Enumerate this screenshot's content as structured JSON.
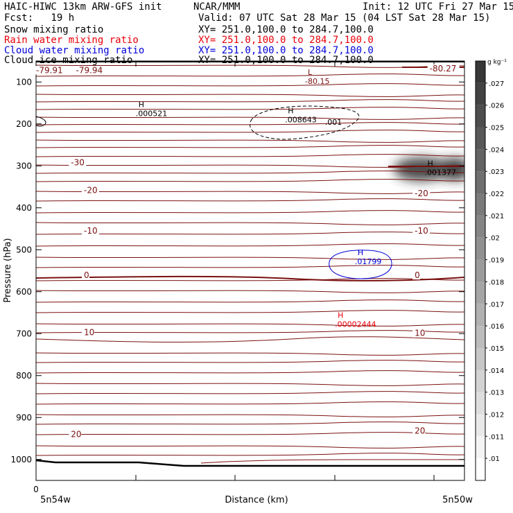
{
  "header": {
    "model": "HAIC-HIWC 13km ARW-GFS init",
    "org": "NCAR/MMM",
    "init": "Init: 12 UTC Fri 27 Mar 15",
    "fcst": "Fcst:   19 h",
    "valid": "Valid: 07 UTC Sat 28 Mar 15 (04 LST Sat 28 Mar 15)"
  },
  "fields": [
    {
      "name": "Snow mixing ratio",
      "xy": "XY= 251.0,100.0 to 284.7,100.0",
      "color": "#000000"
    },
    {
      "name": "Rain water mixing ratio",
      "xy": "XY= 251.0,100.0 to 284.7,100.0",
      "color": "#e8000b"
    },
    {
      "name": "Cloud water mixing ratio",
      "xy": "XY= 251.0,100.0 to 284.7,100.0",
      "color": "#0000d8"
    },
    {
      "name": "Cloud ice mixing ratio",
      "xy": "XY= 251.0,100.0 to 284.7,100.0",
      "color": "#000000"
    }
  ],
  "colors": {
    "temperature": "#7a1010",
    "rain": "#e8000b",
    "cloud_water": "#0000d8",
    "snow": "#000000",
    "ice": "#000000"
  },
  "chart_data": {
    "type": "contour",
    "xlabel": "Distance (km)",
    "ylabel": "Pressure (hPa)",
    "x_start_label": "5n54w",
    "x_end_label": "5n50w",
    "x_zero_label": "0",
    "xlim": [
      0,
      430
    ],
    "ylim": [
      1050,
      50
    ],
    "yticks": [
      100,
      200,
      300,
      400,
      500,
      600,
      700,
      800,
      900,
      1000
    ],
    "temperature_labels": [
      {
        "text": "-79.91",
        "p": 77,
        "x": 0
      },
      {
        "text": "-79.94",
        "p": 77,
        "x": 40
      },
      {
        "text": "-80.27",
        "p": 73,
        "x": 395
      },
      {
        "text": "-30",
        "p": 297,
        "x": 35
      },
      {
        "text": "-20",
        "p": 363,
        "x": 48
      },
      {
        "text": "-20",
        "p": 371,
        "x": 380
      },
      {
        "text": "-10",
        "p": 460,
        "x": 48
      },
      {
        "text": "-10",
        "p": 460,
        "x": 380
      },
      {
        "text": "0",
        "p": 566,
        "x": 48
      },
      {
        "text": "0",
        "p": 566,
        "x": 380
      },
      {
        "text": "10",
        "p": 702,
        "x": 48
      },
      {
        "text": "10",
        "p": 704,
        "x": 380
      },
      {
        "text": "20",
        "p": 945,
        "x": 35
      },
      {
        "text": "20",
        "p": 937,
        "x": 380
      }
    ],
    "extrema": [
      {
        "kind": "L",
        "value": "-80.15",
        "p": 93,
        "x": 270,
        "field": "temperature"
      },
      {
        "kind": "H",
        "value": ".000521",
        "p": 170,
        "x": 100,
        "field": "snow"
      },
      {
        "kind": "H",
        "value": ".008643",
        "p": 185,
        "x": 250,
        "field": "snow"
      },
      {
        "kind": "H",
        "value": ".001377",
        "p": 310,
        "x": 390,
        "field": "ice"
      },
      {
        "kind": "H",
        "value": ".01799",
        "p": 523,
        "x": 320,
        "field": "cloud_water"
      },
      {
        "kind": "H",
        "value": ".00002444",
        "p": 672,
        "x": 300,
        "field": "rain"
      }
    ],
    "contour_labels": [
      {
        "text": ".001",
        "p": 202,
        "x": 290,
        "field": "snow"
      }
    ],
    "colorbar": {
      "unit": "g kg⁻¹",
      "levels": [
        ".01",
        ".011",
        ".012",
        ".013",
        ".014",
        ".015",
        ".016",
        ".017",
        ".018",
        ".019",
        ".02",
        ".021",
        ".022",
        ".023",
        ".024",
        ".025",
        ".026",
        ".027"
      ]
    }
  }
}
